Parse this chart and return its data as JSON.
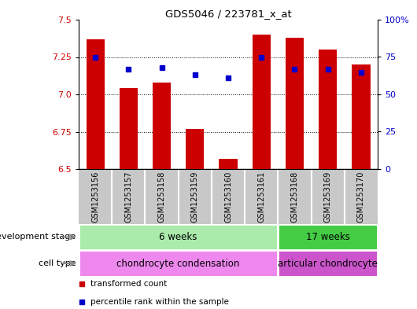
{
  "title": "GDS5046 / 223781_x_at",
  "samples": [
    "GSM1253156",
    "GSM1253157",
    "GSM1253158",
    "GSM1253159",
    "GSM1253160",
    "GSM1253161",
    "GSM1253168",
    "GSM1253169",
    "GSM1253170"
  ],
  "bar_values": [
    7.37,
    7.04,
    7.08,
    6.77,
    6.57,
    7.4,
    7.38,
    7.3,
    7.2
  ],
  "bar_bottom": 6.5,
  "dot_values": [
    7.25,
    7.17,
    7.18,
    7.13,
    7.11,
    7.25,
    7.17,
    7.17,
    7.15
  ],
  "bar_color": "#cc0000",
  "dot_color": "#0000cc",
  "ylim_left": [
    6.5,
    7.5
  ],
  "ylim_right": [
    0,
    100
  ],
  "yticks_left": [
    6.5,
    6.75,
    7.0,
    7.25,
    7.5
  ],
  "yticks_right": [
    0,
    25,
    50,
    75,
    100
  ],
  "gridlines_at": [
    6.75,
    7.0,
    7.25
  ],
  "dev_stage_groups": [
    {
      "label": "6 weeks",
      "start": 0,
      "end": 6,
      "color": "#aaeaaa"
    },
    {
      "label": "17 weeks",
      "start": 6,
      "end": 9,
      "color": "#44cc44"
    }
  ],
  "cell_type_groups": [
    {
      "label": "chondrocyte condensation",
      "start": 0,
      "end": 6,
      "color": "#ee88ee"
    },
    {
      "label": "articular chondrocyte",
      "start": 6,
      "end": 9,
      "color": "#cc55cc"
    }
  ],
  "legend_items": [
    {
      "label": "transformed count",
      "color": "#cc0000"
    },
    {
      "label": "percentile rank within the sample",
      "color": "#0000cc"
    }
  ],
  "dev_stage_label": "development stage",
  "cell_type_label": "cell type",
  "xtick_bg": "#c8c8c8",
  "xtick_sep_color": "#ffffff",
  "bg_color": "#ffffff",
  "tick_color_left": "#cc0000",
  "tick_color_right": "#0000cc"
}
